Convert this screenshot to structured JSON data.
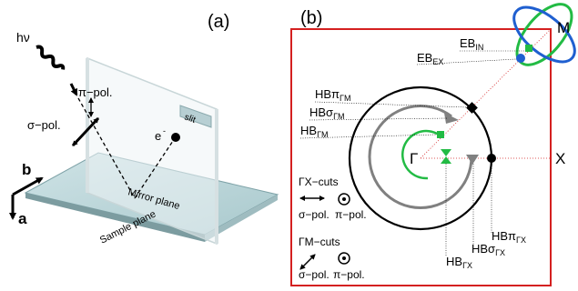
{
  "panel_a": {
    "label": "(a)",
    "photon": "hν",
    "pi_pol": "π−pol.",
    "sigma_pol": "σ−pol.",
    "slit": "slit",
    "electron": "e",
    "electron_sup": "-",
    "axis_b": "b",
    "axis_a": "a",
    "mirror_plane": "Mirror plane",
    "sample_plane": "Sample plane"
  },
  "panel_b": {
    "label": "(b)",
    "point_M": "M",
    "point_X": "X",
    "point_Gamma": "Γ",
    "eb_in": "EB",
    "eb_in_sub": "IN",
    "eb_ex": "EB",
    "eb_ex_sub": "EX",
    "hb_pi_gm": "HBπ",
    "hb_pi_gm_sub": "ΓM",
    "hb_sigma_gm": "HBσ",
    "hb_sigma_gm_sub": "ΓM",
    "hb_gm": "HB",
    "hb_gm_sub": "ΓM",
    "hb_pi_gx": "HBπ",
    "hb_pi_gx_sub": "ΓX",
    "hb_sigma_gx": "HBσ",
    "hb_sigma_gx_sub": "ΓX",
    "hb_gx": "HB",
    "hb_gx_sub": "ΓX",
    "gx_cuts": "ΓX−cuts",
    "gm_cuts": "ΓM−cuts",
    "sigma_pol": "σ−pol.",
    "pi_pol": "π−pol.",
    "colors": {
      "frame": "#d42020",
      "green": "#22bb44",
      "blue": "#1f5fd0",
      "gray": "#808080"
    }
  }
}
